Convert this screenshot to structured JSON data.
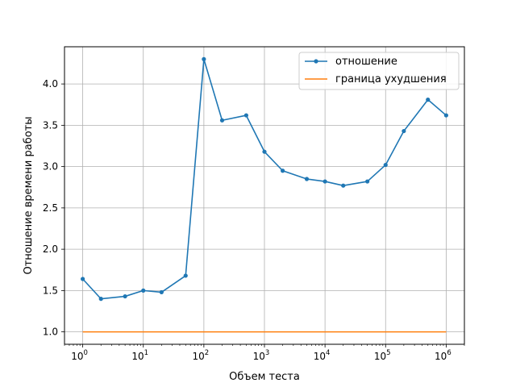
{
  "chart_data": {
    "type": "line",
    "title": "",
    "xlabel": "Объем теста",
    "ylabel": "Отношение времени работы",
    "xscale": "log",
    "xlim": [
      0.5,
      2000000
    ],
    "ylim": [
      0.85,
      4.45
    ],
    "x_ticks": [
      {
        "base": "10",
        "exp": "0",
        "value": 1
      },
      {
        "base": "10",
        "exp": "1",
        "value": 10
      },
      {
        "base": "10",
        "exp": "2",
        "value": 100
      },
      {
        "base": "10",
        "exp": "3",
        "value": 1000
      },
      {
        "base": "10",
        "exp": "4",
        "value": 10000
      },
      {
        "base": "10",
        "exp": "5",
        "value": 100000
      },
      {
        "base": "10",
        "exp": "6",
        "value": 1000000
      }
    ],
    "y_ticks": [
      {
        "value": 1.0,
        "label": "1.0"
      },
      {
        "value": 1.5,
        "label": "1.5"
      },
      {
        "value": 2.0,
        "label": "2.0"
      },
      {
        "value": 2.5,
        "label": "2.5"
      },
      {
        "value": 3.0,
        "label": "3.0"
      },
      {
        "value": 3.5,
        "label": "3.5"
      },
      {
        "value": 4.0,
        "label": "4.0"
      }
    ],
    "grid": true,
    "legend_position": "top-right",
    "series": [
      {
        "name": "отношение",
        "color": "#1f77b4",
        "marker": "circle",
        "x": [
          1,
          2,
          5,
          10,
          20,
          50,
          100,
          200,
          500,
          1000,
          2000,
          5000,
          10000,
          20000,
          50000,
          100000,
          200000,
          500000,
          1000000
        ],
        "y": [
          1.64,
          1.4,
          1.43,
          1.5,
          1.48,
          1.68,
          4.3,
          3.56,
          3.62,
          3.18,
          2.95,
          2.85,
          2.82,
          2.77,
          2.82,
          3.02,
          3.43,
          3.81,
          3.62
        ]
      },
      {
        "name": "граница ухудшения",
        "color": "#ff7f0e",
        "marker": "none",
        "x": [
          1,
          1000000
        ],
        "y": [
          1.0,
          1.0
        ]
      }
    ]
  }
}
